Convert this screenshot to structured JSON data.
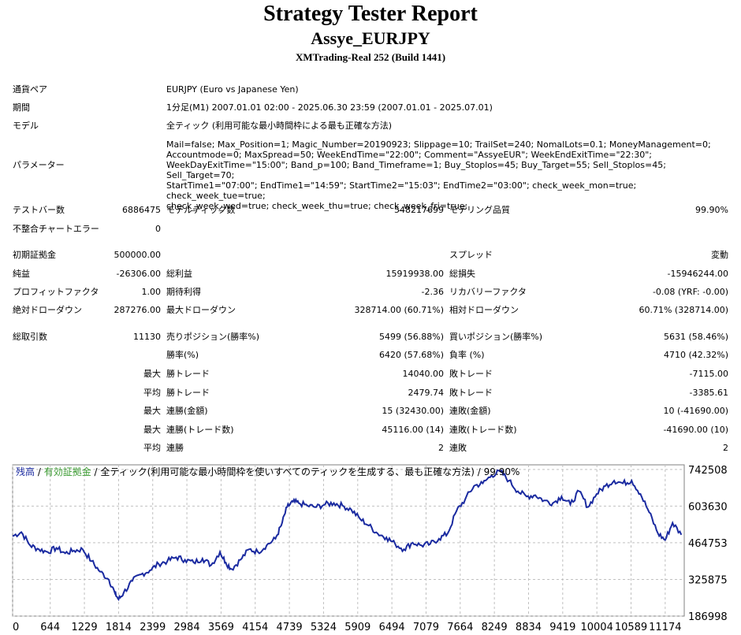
{
  "header": {
    "title": "Strategy Tester Report",
    "subtitle": "Assye_EURJPY",
    "build": "XMTrading-Real 252 (Build 1441)"
  },
  "info": {
    "symbol_label": "通貨ペア",
    "symbol_value": "EURJPY (Euro vs Japanese Yen)",
    "period_label": "期間",
    "period_value": "1分足(M1) 2007.01.01 02:00 - 2025.06.30 23:59 (2007.01.01 - 2025.07.01)",
    "model_label": "モデル",
    "model_value": "全ティック (利用可能な最小時間枠による最も正確な方法)",
    "params_label": "パラメーター",
    "params_lines": [
      "Mail=false; Max_Position=1; Magic_Number=20190923; Slippage=10; TrailSet=240; NomalLots=0.1; MoneyManagement=0;",
      "Accountmode=0; MaxSpread=50; WeekEndTime=\"22:00\"; Comment=\"AssyeEUR\"; WeekEndExitTime=\"22:30\";",
      "WeekDayExitTime=\"15:00\"; Band_p=100; Band_Timeframe=1; Buy_Stoplos=45; Buy_Target=55; Sell_Stoplos=45; Sell_Target=70;",
      "StartTime1=\"07:00\"; EndTime1=\"14:59\"; StartTime2=\"15:03\"; EndTime2=\"03:00\"; check_week_mon=true; check_week_tue=true;",
      "check_week_wed=true; check_week_thu=true; check_week_fri=true;"
    ]
  },
  "stats": {
    "bars_label": "テストバー数",
    "bars_value": "6886475",
    "ticks_label": "モデルティック数",
    "ticks_value": "548217699",
    "quality_label": "モデリング品質",
    "quality_value": "99.90%",
    "mismatch_label": "不整合チャートエラー",
    "mismatch_value": "0",
    "deposit_label": "初期証拠金",
    "deposit_value": "500000.00",
    "spread_label": "スプレッド",
    "spread_value": "変動",
    "net_label": "純益",
    "net_value": "-26306.00",
    "gross_profit_label": "総利益",
    "gross_profit_value": "15919938.00",
    "gross_loss_label": "総損失",
    "gross_loss_value": "-15946244.00",
    "pf_label": "プロフィットファクタ",
    "pf_value": "1.00",
    "expected_label": "期待利得",
    "expected_value": "-2.36",
    "recovery_label": "リカバリーファクタ",
    "recovery_value": "-0.08 (YRF: -0.00)",
    "absdd_label": "絶対ドローダウン",
    "absdd_value": "287276.00",
    "maxdd_label": "最大ドローダウン",
    "maxdd_value": "328714.00 (60.71%)",
    "reldd_label": "相対ドローダウン",
    "reldd_value": "60.71% (328714.00)",
    "trades_label": "総取引数",
    "trades_value": "11130",
    "short_label": "売りポジション(勝率%)",
    "short_value": "5499 (56.88%)",
    "long_label": "買いポジション(勝率%)",
    "long_value": "5631 (58.46%)",
    "winrate_label": "勝率(%)",
    "winrate_value": "6420 (57.68%)",
    "lossrate_label": "負率 (%)",
    "lossrate_value": "4710 (42.32%)",
    "max_label": "最大",
    "avg_label": "平均",
    "best_label": "勝トレード",
    "best_value": "14040.00",
    "worst_label": "敗トレード",
    "worst_value": "-7115.00",
    "avgwin_label": "勝トレード",
    "avgwin_value": "2479.74",
    "avgloss_label": "敗トレード",
    "avgloss_value": "-3385.61",
    "max2_label": "最大",
    "conswin_label": "連勝(金額)",
    "conswin_value": "15 (32430.00)",
    "consloss_label": "連敗(金額)",
    "consloss_value": "10 (-41690.00)",
    "max3_label": "最大",
    "conswin2_label": "連勝(トレード数)",
    "conswin2_value": "45116.00 (14)",
    "consloss2_label": "連敗(トレード数)",
    "consloss2_value": "-41690.00 (10)",
    "avg2_label": "平均",
    "avgwin_run_label": "連勝",
    "avgwin_run_value": "2",
    "avgloss_run_label": "連敗",
    "avgloss_run_value": "2"
  },
  "chart_data": {
    "type": "line",
    "legend": {
      "balance": "残高",
      "sep1": " / ",
      "equity": "有効証拠金",
      "rest": " / 全ティック(利用可能な最小時間枠を使いすべてのティックを生成する、最も正確な方法) / 99.90%"
    },
    "colors": {
      "line": "#1a2aa0",
      "balance": "#1a2aa0",
      "equity": "#3a9a30",
      "grid": "#c0c0c0"
    },
    "x_ticks": [
      "0",
      "644",
      "1229",
      "1814",
      "2399",
      "2984",
      "3569",
      "4154",
      "4739",
      "5324",
      "5909",
      "6494",
      "7079",
      "7664",
      "8249",
      "8834",
      "9419",
      "10004",
      "10589",
      "11174"
    ],
    "y_ticks": [
      "742508",
      "603630",
      "464753",
      "325875",
      "186998"
    ],
    "xlim": [
      0,
      11500
    ],
    "ylim": [
      186998,
      760000
    ],
    "series": [
      {
        "x": [
          0,
          150,
          300,
          450,
          600,
          750,
          900,
          1050,
          1200,
          1350,
          1500,
          1650,
          1750,
          1814,
          1900,
          2050,
          2200,
          2350,
          2500,
          2650,
          2800,
          2950,
          3100,
          3250,
          3400,
          3550,
          3650,
          3750,
          3900,
          4050,
          4200,
          4350,
          4500,
          4600,
          4700,
          4800,
          4900,
          5050,
          5200,
          5350,
          5500,
          5650,
          5800,
          5950,
          6100,
          6250,
          6400,
          6550,
          6700,
          6850,
          7000,
          7150,
          7300,
          7450,
          7600,
          7750,
          7900,
          8050,
          8200,
          8350,
          8500,
          8650,
          8800,
          8950,
          9100,
          9250,
          9400,
          9550,
          9700,
          9850,
          10000,
          10150,
          10300,
          10450,
          10600,
          10750,
          10900,
          11050,
          11174,
          11300,
          11450
        ],
        "y": [
          490000,
          505000,
          455000,
          440000,
          430000,
          445000,
          425000,
          435000,
          440000,
          395000,
          355000,
          325000,
          275000,
          250000,
          275000,
          320000,
          345000,
          360000,
          385000,
          395000,
          410000,
          400000,
          390000,
          405000,
          380000,
          430000,
          390000,
          365000,
          400000,
          440000,
          430000,
          455000,
          480000,
          530000,
          600000,
          620000,
          615000,
          605000,
          600000,
          610000,
          615000,
          605000,
          590000,
          555000,
          530000,
          500000,
          485000,
          460000,
          440000,
          465000,
          455000,
          460000,
          480000,
          500000,
          585000,
          630000,
          680000,
          690000,
          720000,
          735000,
          700000,
          660000,
          640000,
          645000,
          625000,
          615000,
          640000,
          610000,
          660000,
          600000,
          650000,
          680000,
          700000,
          690000,
          700000,
          650000,
          580000,
          500000,
          475000,
          540000,
          495000
        ]
      }
    ]
  }
}
